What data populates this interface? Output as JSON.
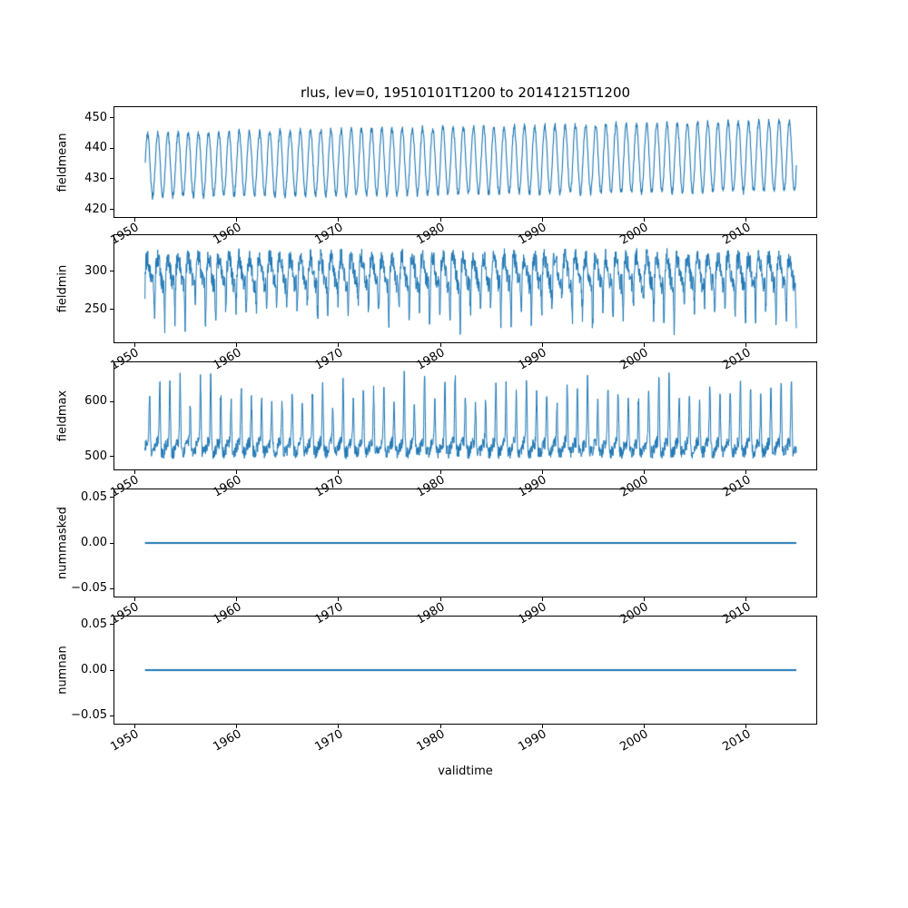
{
  "figure": {
    "title": "rlus, lev=0, 19510101T1200 to 20141215T1200",
    "xlabel": "validtime",
    "line_color": "#1f77b4",
    "background": "#ffffff"
  },
  "chart_data": [
    {
      "type": "line",
      "ylabel": "fieldmean",
      "xlim": [
        1948.0,
        2016.9
      ],
      "ylim": [
        417.5,
        453.5
      ],
      "xtick_values": [
        1950,
        1960,
        1970,
        1980,
        1990,
        2000,
        2010
      ],
      "xtick_labels": [
        "1950",
        "1960",
        "1970",
        "1980",
        "1990",
        "2000",
        "2010"
      ],
      "ytick_values": [
        420,
        430,
        440,
        450
      ],
      "ytick_labels": [
        "420",
        "430",
        "440",
        "450"
      ],
      "x_start": 1951.0,
      "x_end": 2014.96,
      "observed_range": [
        422,
        452
      ],
      "shape": "dense annual seasonal oscillation, slight upward trend over 1951-2014",
      "model": {
        "kind": "seasonal",
        "base": 434.5,
        "trend": 3.0,
        "amp": 10.3,
        "amp_trend": 1.2,
        "noise": 1.0
      },
      "line_width": 1.1
    },
    {
      "type": "line",
      "ylabel": "fieldmin",
      "xlim": [
        1948.0,
        2016.9
      ],
      "ylim": [
        207,
        347
      ],
      "xtick_values": [
        1950,
        1960,
        1970,
        1980,
        1990,
        2000,
        2010
      ],
      "xtick_labels": [
        "1950",
        "1960",
        "1970",
        "1980",
        "1990",
        "2000",
        "2010"
      ],
      "ytick_values": [
        250,
        300
      ],
      "ytick_labels": [
        "250",
        "300"
      ],
      "x_start": 1951.0,
      "x_end": 2014.96,
      "observed_range": [
        215,
        335
      ],
      "shape": "noisy band around 300 with sharp annual downward spikes to roughly 215-240",
      "model": {
        "kind": "dip",
        "base": 300,
        "season_amp": 17,
        "noise": 13,
        "dip_amp": 72,
        "dip_sharp": 10,
        "dip_phase": 0.3
      },
      "line_width": 1.0
    },
    {
      "type": "line",
      "ylabel": "fieldmax",
      "xlim": [
        1948.0,
        2016.9
      ],
      "ylim": [
        476,
        672
      ],
      "xtick_values": [
        1950,
        1960,
        1970,
        1980,
        1990,
        2000,
        2010
      ],
      "xtick_labels": [
        "1950",
        "1960",
        "1970",
        "1980",
        "1990",
        "2000",
        "2010"
      ],
      "ytick_values": [
        500,
        600
      ],
      "ytick_labels": [
        "500",
        "600"
      ],
      "x_start": 1951.0,
      "x_end": 2014.96,
      "observed_range": [
        492,
        660
      ],
      "shape": "noisy band around 500-540 with sharp annual upward spikes to roughly 600-660",
      "model": {
        "kind": "peak",
        "base": 516,
        "season_amp": 9,
        "noise": 12,
        "peak_amp": 132,
        "peak_sharp": 8,
        "peak_phase": 0.8
      },
      "line_width": 1.0
    },
    {
      "type": "line",
      "ylabel": "nummasked",
      "xlim": [
        1948.0,
        2016.9
      ],
      "ylim": [
        -0.0585,
        0.0585
      ],
      "xtick_values": [
        1950,
        1960,
        1970,
        1980,
        1990,
        2000,
        2010
      ],
      "xtick_labels": [
        "1950",
        "1960",
        "1970",
        "1980",
        "1990",
        "2000",
        "2010"
      ],
      "ytick_values": [
        -0.05,
        0.0,
        0.05
      ],
      "ytick_labels": [
        "−0.05",
        "0.00",
        "0.05"
      ],
      "x_start": 1951.0,
      "x_end": 2014.96,
      "observed_range": [
        0,
        0
      ],
      "shape": "constant flat line at 0.00",
      "model": {
        "kind": "constant",
        "value": 0
      },
      "line_width": 1.8
    },
    {
      "type": "line",
      "ylabel": "numnan",
      "xlim": [
        1948.0,
        2016.9
      ],
      "ylim": [
        -0.0585,
        0.0585
      ],
      "xtick_values": [
        1950,
        1960,
        1970,
        1980,
        1990,
        2000,
        2010
      ],
      "xtick_labels": [
        "1950",
        "1960",
        "1970",
        "1980",
        "1990",
        "2000",
        "2010"
      ],
      "ytick_values": [
        -0.05,
        0.0,
        0.05
      ],
      "ytick_labels": [
        "−0.05",
        "0.00",
        "0.05"
      ],
      "x_start": 1951.0,
      "x_end": 2014.96,
      "observed_range": [
        0,
        0
      ],
      "shape": "constant flat line at 0.00",
      "model": {
        "kind": "constant",
        "value": 0
      },
      "line_width": 1.8
    }
  ]
}
